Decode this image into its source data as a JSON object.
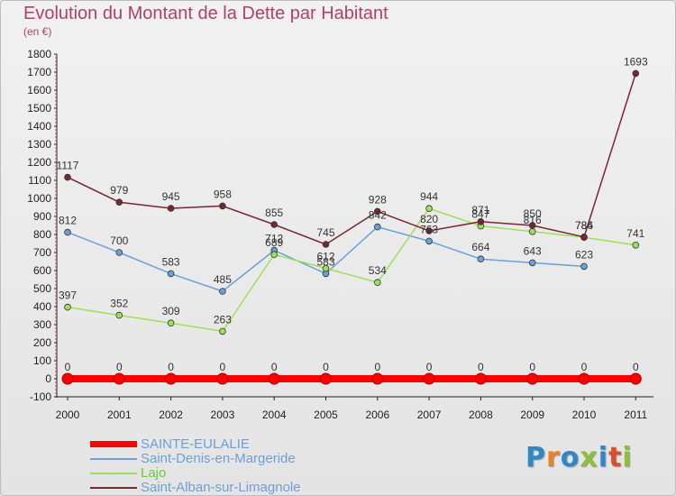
{
  "header": {
    "title": "Evolution du Montant de la Dette par Habitant",
    "subtitle": "(en €)"
  },
  "logo": {
    "text": "Proxiti",
    "letter_colors": [
      "#2e88c8",
      "#e8822a",
      "#2e88c8",
      "#8cbf3a",
      "#2e88c8",
      "#d94f2a",
      "#8cbf3a"
    ]
  },
  "chart_data": {
    "type": "line",
    "title": "Evolution du Montant de la Dette par Habitant",
    "subtitle": "(en €)",
    "xlabel": "",
    "ylabel": "",
    "x": [
      "2000",
      "2001",
      "2002",
      "2003",
      "2004",
      "2005",
      "2006",
      "2007",
      "2008",
      "2009",
      "2010",
      "2011"
    ],
    "ylim": [
      -100,
      1800
    ],
    "yticks": [
      -100,
      0,
      100,
      200,
      300,
      400,
      500,
      600,
      700,
      800,
      900,
      1000,
      1100,
      1200,
      1300,
      1400,
      1500,
      1600,
      1700,
      1800
    ],
    "grid": false,
    "legend_position": "bottom-left",
    "series": [
      {
        "name": "SAINTE-EULALIE",
        "color": "#ff0000",
        "values": [
          0,
          0,
          0,
          0,
          0,
          0,
          0,
          0,
          0,
          0,
          0,
          0
        ],
        "labels": [
          "0",
          "0",
          "0",
          "0",
          "0",
          "0",
          "0",
          "0",
          "0",
          "0",
          "0",
          "0"
        ]
      },
      {
        "name": "Saint-Denis-en-Margeride",
        "color": "#6ca0d8",
        "values": [
          812,
          700,
          583,
          485,
          712,
          583,
          842,
          763,
          664,
          643,
          623,
          null
        ],
        "labels": [
          "812",
          "700",
          "583",
          "485",
          "712",
          "583",
          "842",
          "763",
          "664",
          "643",
          "623",
          ""
        ]
      },
      {
        "name": "Lajo",
        "color": "#9ee05a",
        "values": [
          397,
          352,
          309,
          263,
          689,
          612,
          534,
          944,
          847,
          816,
          784,
          741
        ],
        "labels": [
          "397",
          "352",
          "309",
          "263",
          "689",
          "612",
          "534",
          "944",
          "847",
          "816",
          "784",
          "741"
        ]
      },
      {
        "name": "Saint-Alban-sur-Limagnole",
        "color": "#7a2630",
        "values": [
          1117,
          979,
          945,
          958,
          855,
          745,
          928,
          820,
          871,
          850,
          786,
          1693
        ],
        "labels": [
          "1117",
          "979",
          "945",
          "958",
          "855",
          "745",
          "928",
          "820",
          "871",
          "850",
          "786",
          "1693"
        ]
      }
    ]
  }
}
